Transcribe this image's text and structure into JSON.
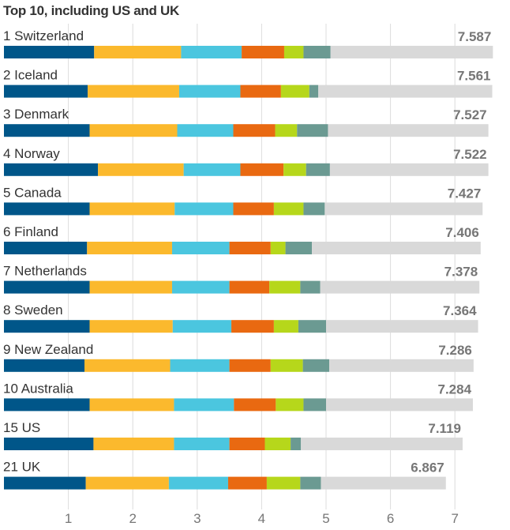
{
  "chart_data": {
    "type": "bar",
    "stacked": true,
    "orientation": "horizontal",
    "title": "Top 10, including US and UK",
    "xlim": [
      0,
      7.6
    ],
    "x_ticks": [
      1,
      2,
      3,
      4,
      5,
      6,
      7
    ],
    "gridlines": true,
    "series_colors": [
      "#005689",
      "#fbb92d",
      "#4bc6df",
      "#e96911",
      "#b6d71b",
      "#6b9a92",
      "#d9d9d9"
    ],
    "rows": [
      {
        "label": "1 Switzerland",
        "score": "7.587",
        "segments": [
          1.4,
          1.35,
          0.94,
          0.66,
          0.3,
          0.42,
          2.52
        ]
      },
      {
        "label": "2 Iceland",
        "score": "7.561",
        "segments": [
          1.3,
          1.42,
          0.95,
          0.63,
          0.44,
          0.14,
          2.7
        ]
      },
      {
        "label": "3 Denmark",
        "score": "7.527",
        "segments": [
          1.33,
          1.36,
          0.87,
          0.65,
          0.34,
          0.48,
          2.49
        ]
      },
      {
        "label": "4 Norway",
        "score": "7.522",
        "segments": [
          1.46,
          1.33,
          0.88,
          0.67,
          0.35,
          0.37,
          2.46
        ]
      },
      {
        "label": "5 Canada",
        "score": "7.427",
        "segments": [
          1.33,
          1.32,
          0.91,
          0.63,
          0.46,
          0.33,
          2.45
        ]
      },
      {
        "label": "6 Finland",
        "score": "7.406",
        "segments": [
          1.29,
          1.32,
          0.89,
          0.64,
          0.23,
          0.41,
          2.62
        ]
      },
      {
        "label": "7 Netherlands",
        "score": "7.378",
        "segments": [
          1.33,
          1.28,
          0.89,
          0.62,
          0.48,
          0.31,
          2.47
        ]
      },
      {
        "label": "8 Sweden",
        "score": "7.364",
        "segments": [
          1.33,
          1.29,
          0.91,
          0.66,
          0.38,
          0.43,
          2.36
        ]
      },
      {
        "label": "9 New Zealand",
        "score": "7.286",
        "segments": [
          1.25,
          1.33,
          0.92,
          0.64,
          0.5,
          0.41,
          2.24
        ]
      },
      {
        "label": "10 Australia",
        "score": "7.284",
        "segments": [
          1.33,
          1.31,
          0.93,
          0.65,
          0.43,
          0.35,
          2.28
        ]
      },
      {
        "label": "15 US",
        "score": "7.119",
        "segments": [
          1.39,
          1.25,
          0.86,
          0.55,
          0.4,
          0.16,
          2.51
        ]
      },
      {
        "label": "21 UK",
        "score": "6.867",
        "segments": [
          1.27,
          1.29,
          0.92,
          0.6,
          0.52,
          0.32,
          1.94
        ]
      }
    ]
  }
}
